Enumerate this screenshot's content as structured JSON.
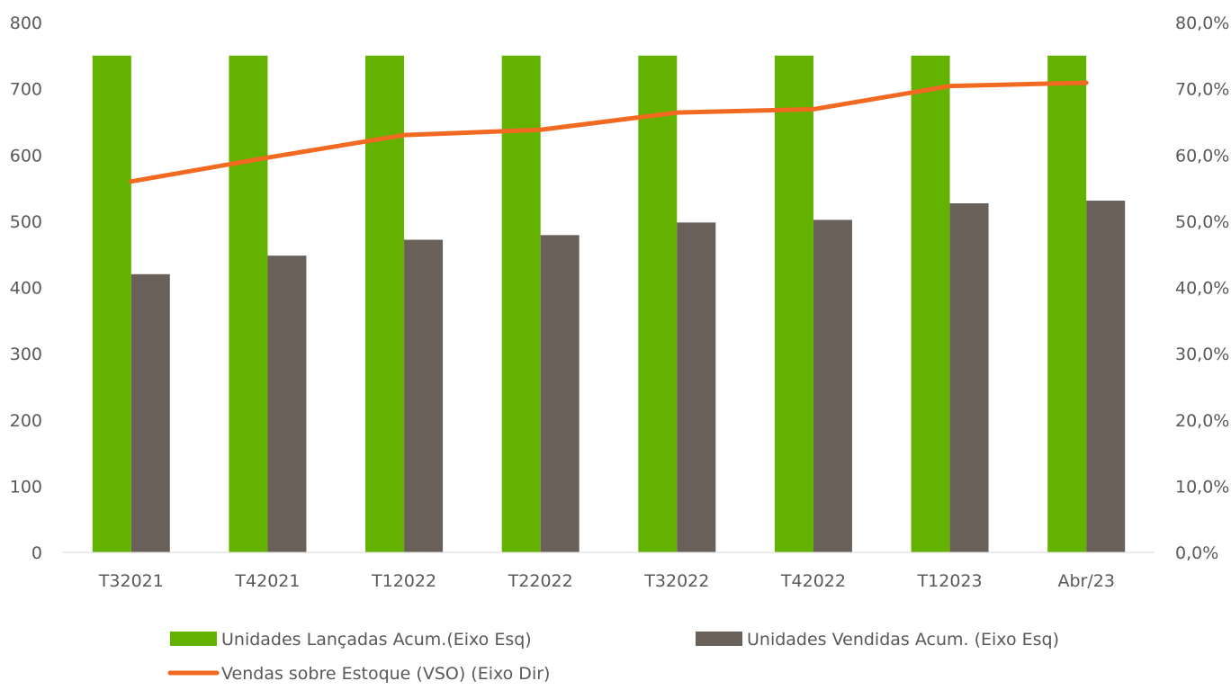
{
  "chart_data": {
    "type": "bar",
    "categories": [
      "T32021",
      "T42021",
      "T12022",
      "T22022",
      "T32022",
      "T42022",
      "T12023",
      "Abr/23"
    ],
    "series": [
      {
        "name": "Unidades Lançadas Acum.(Eixo Esq)",
        "kind": "bar",
        "axis": "left",
        "color": "#63b200",
        "values": [
          750,
          750,
          750,
          750,
          750,
          750,
          750,
          750
        ]
      },
      {
        "name": "Unidades Vendidas Acum. (Eixo Esq)",
        "kind": "bar",
        "axis": "left",
        "color": "#69605a",
        "values": [
          420,
          448,
          472,
          479,
          498,
          502,
          527,
          531
        ]
      },
      {
        "name": "Vendas sobre Estoque (VSO) (Eixo Dir)",
        "kind": "line",
        "axis": "right",
        "color": "#f26a21",
        "values": [
          56.0,
          59.6,
          63.0,
          63.8,
          66.4,
          66.9,
          70.4,
          70.9
        ]
      }
    ],
    "y_left": {
      "min": 0,
      "max": 800,
      "ticks": [
        0,
        100,
        200,
        300,
        400,
        500,
        600,
        700,
        800
      ],
      "tick_labels": [
        "0",
        "100",
        "200",
        "300",
        "400",
        "500",
        "600",
        "700",
        "800"
      ]
    },
    "y_right": {
      "min": 0,
      "max": 80,
      "ticks": [
        0,
        10,
        20,
        30,
        40,
        50,
        60,
        70,
        80
      ],
      "tick_labels": [
        "0,0%",
        "10,0%",
        "20,0%",
        "30,0%",
        "40,0%",
        "50,0%",
        "60,0%",
        "70,0%",
        "80,0%"
      ]
    },
    "title": "",
    "xlabel": "",
    "ylabel": "",
    "grid": false,
    "legend_position": "bottom"
  }
}
